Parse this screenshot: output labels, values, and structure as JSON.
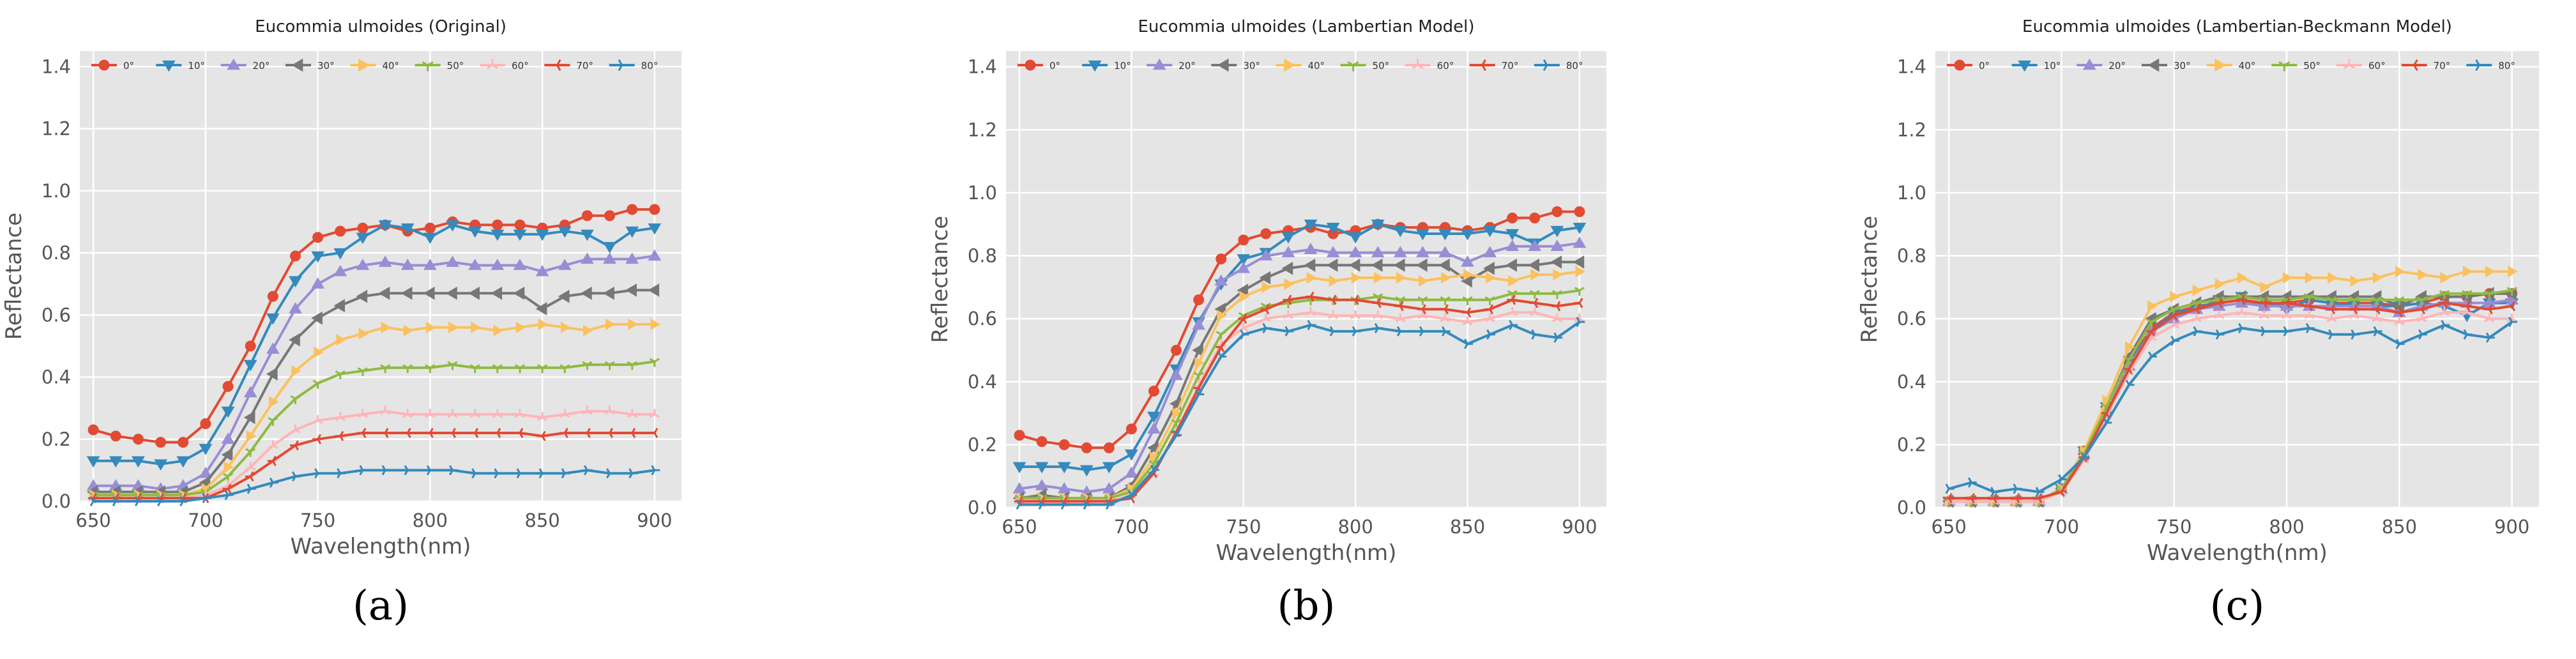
{
  "chart_data": [
    {
      "type": "line",
      "title": "Eucommia ulmoides (Original)",
      "xlabel": "Wavelength(nm)",
      "ylabel": "Reflectance",
      "panel_label": "(a)",
      "xlim": [
        644,
        912
      ],
      "ylim": [
        0,
        1.45
      ],
      "xticks": [
        650,
        700,
        750,
        800,
        850,
        900
      ],
      "yticks": [
        0.0,
        0.2,
        0.4,
        0.6,
        0.8,
        1.0,
        1.2,
        1.4
      ],
      "grid": true,
      "legend": "top",
      "x": [
        650,
        660,
        670,
        680,
        690,
        700,
        710,
        720,
        730,
        740,
        750,
        760,
        770,
        780,
        790,
        800,
        810,
        820,
        830,
        840,
        850,
        860,
        870,
        880,
        890,
        900
      ],
      "series": [
        {
          "name": "0°",
          "values": [
            0.23,
            0.21,
            0.2,
            0.19,
            0.19,
            0.25,
            0.37,
            0.5,
            0.66,
            0.79,
            0.85,
            0.87,
            0.88,
            0.89,
            0.87,
            0.88,
            0.9,
            0.89,
            0.89,
            0.89,
            0.88,
            0.89,
            0.92,
            0.92,
            0.94,
            0.94
          ]
        },
        {
          "name": "10°",
          "values": [
            0.13,
            0.13,
            0.13,
            0.12,
            0.13,
            0.17,
            0.29,
            0.44,
            0.59,
            0.71,
            0.79,
            0.8,
            0.85,
            0.89,
            0.88,
            0.85,
            0.89,
            0.87,
            0.86,
            0.86,
            0.86,
            0.87,
            0.86,
            0.82,
            0.87,
            0.88
          ]
        },
        {
          "name": "20°",
          "values": [
            0.05,
            0.05,
            0.05,
            0.04,
            0.05,
            0.09,
            0.2,
            0.35,
            0.49,
            0.62,
            0.7,
            0.74,
            0.76,
            0.77,
            0.76,
            0.76,
            0.77,
            0.76,
            0.76,
            0.76,
            0.74,
            0.76,
            0.78,
            0.78,
            0.78,
            0.79
          ]
        },
        {
          "name": "30°",
          "values": [
            0.03,
            0.03,
            0.03,
            0.03,
            0.03,
            0.06,
            0.15,
            0.27,
            0.41,
            0.52,
            0.59,
            0.63,
            0.66,
            0.67,
            0.67,
            0.67,
            0.67,
            0.67,
            0.67,
            0.67,
            0.62,
            0.66,
            0.67,
            0.67,
            0.68,
            0.68
          ]
        },
        {
          "name": "40°",
          "values": [
            0.02,
            0.02,
            0.02,
            0.02,
            0.02,
            0.04,
            0.11,
            0.21,
            0.32,
            0.42,
            0.48,
            0.52,
            0.54,
            0.56,
            0.55,
            0.56,
            0.56,
            0.56,
            0.55,
            0.56,
            0.57,
            0.56,
            0.55,
            0.57,
            0.57,
            0.57
          ]
        },
        {
          "name": "50°",
          "values": [
            0.02,
            0.02,
            0.02,
            0.02,
            0.02,
            0.03,
            0.08,
            0.16,
            0.26,
            0.33,
            0.38,
            0.41,
            0.42,
            0.43,
            0.43,
            0.43,
            0.44,
            0.43,
            0.43,
            0.43,
            0.43,
            0.43,
            0.44,
            0.44,
            0.44,
            0.45
          ]
        },
        {
          "name": "60°",
          "values": [
            0.01,
            0.01,
            0.01,
            0.01,
            0.01,
            0.02,
            0.05,
            0.11,
            0.18,
            0.23,
            0.26,
            0.27,
            0.28,
            0.29,
            0.28,
            0.28,
            0.28,
            0.28,
            0.28,
            0.28,
            0.27,
            0.28,
            0.29,
            0.29,
            0.28,
            0.28
          ]
        },
        {
          "name": "70°",
          "values": [
            0.01,
            0.01,
            0.01,
            0.01,
            0.01,
            0.01,
            0.04,
            0.08,
            0.13,
            0.18,
            0.2,
            0.21,
            0.22,
            0.22,
            0.22,
            0.22,
            0.22,
            0.22,
            0.22,
            0.22,
            0.21,
            0.22,
            0.22,
            0.22,
            0.22,
            0.22
          ]
        },
        {
          "name": "80°",
          "values": [
            0.0,
            0.0,
            0.0,
            0.0,
            0.0,
            0.01,
            0.02,
            0.04,
            0.06,
            0.08,
            0.09,
            0.09,
            0.1,
            0.1,
            0.1,
            0.1,
            0.1,
            0.09,
            0.09,
            0.09,
            0.09,
            0.09,
            0.1,
            0.09,
            0.09,
            0.1
          ]
        }
      ]
    },
    {
      "type": "line",
      "title": "Eucommia ulmoides (Lambertian Model)",
      "xlabel": "Wavelength(nm)",
      "ylabel": "Reflectance",
      "panel_label": "(b)",
      "xlim": [
        644,
        912
      ],
      "ylim": [
        0,
        1.45
      ],
      "xticks": [
        650,
        700,
        750,
        800,
        850,
        900
      ],
      "yticks": [
        0.0,
        0.2,
        0.4,
        0.6,
        0.8,
        1.0,
        1.2,
        1.4
      ],
      "grid": true,
      "legend": "top",
      "x": [
        650,
        660,
        670,
        680,
        690,
        700,
        710,
        720,
        730,
        740,
        750,
        760,
        770,
        780,
        790,
        800,
        810,
        820,
        830,
        840,
        850,
        860,
        870,
        880,
        890,
        900
      ],
      "series": [
        {
          "name": "0°",
          "values": [
            0.23,
            0.21,
            0.2,
            0.19,
            0.19,
            0.25,
            0.37,
            0.5,
            0.66,
            0.79,
            0.85,
            0.87,
            0.88,
            0.89,
            0.87,
            0.88,
            0.9,
            0.89,
            0.89,
            0.89,
            0.88,
            0.89,
            0.92,
            0.92,
            0.94,
            0.94
          ]
        },
        {
          "name": "10°",
          "values": [
            0.13,
            0.13,
            0.13,
            0.12,
            0.13,
            0.17,
            0.29,
            0.44,
            0.59,
            0.71,
            0.79,
            0.81,
            0.86,
            0.9,
            0.89,
            0.86,
            0.9,
            0.88,
            0.87,
            0.87,
            0.87,
            0.88,
            0.87,
            0.84,
            0.88,
            0.89
          ]
        },
        {
          "name": "20°",
          "values": [
            0.06,
            0.07,
            0.06,
            0.05,
            0.06,
            0.11,
            0.25,
            0.42,
            0.58,
            0.72,
            0.76,
            0.8,
            0.81,
            0.82,
            0.81,
            0.81,
            0.81,
            0.81,
            0.81,
            0.81,
            0.78,
            0.81,
            0.83,
            0.83,
            0.83,
            0.84
          ]
        },
        {
          "name": "30°",
          "values": [
            0.03,
            0.04,
            0.03,
            0.03,
            0.03,
            0.07,
            0.19,
            0.33,
            0.5,
            0.63,
            0.69,
            0.73,
            0.76,
            0.77,
            0.77,
            0.77,
            0.77,
            0.77,
            0.77,
            0.77,
            0.72,
            0.76,
            0.77,
            0.77,
            0.78,
            0.78
          ]
        },
        {
          "name": "40°",
          "values": [
            0.03,
            0.03,
            0.03,
            0.03,
            0.03,
            0.06,
            0.16,
            0.3,
            0.46,
            0.61,
            0.67,
            0.7,
            0.71,
            0.73,
            0.72,
            0.73,
            0.73,
            0.73,
            0.72,
            0.73,
            0.74,
            0.73,
            0.72,
            0.74,
            0.74,
            0.75
          ]
        },
        {
          "name": "50°",
          "values": [
            0.03,
            0.03,
            0.03,
            0.03,
            0.03,
            0.05,
            0.14,
            0.27,
            0.42,
            0.55,
            0.61,
            0.64,
            0.65,
            0.66,
            0.66,
            0.66,
            0.67,
            0.66,
            0.66,
            0.66,
            0.66,
            0.66,
            0.68,
            0.68,
            0.68,
            0.69
          ]
        },
        {
          "name": "60°",
          "values": [
            0.02,
            0.02,
            0.02,
            0.02,
            0.02,
            0.04,
            0.11,
            0.24,
            0.39,
            0.52,
            0.57,
            0.6,
            0.61,
            0.62,
            0.61,
            0.61,
            0.61,
            0.6,
            0.61,
            0.6,
            0.59,
            0.6,
            0.62,
            0.62,
            0.6,
            0.6
          ]
        },
        {
          "name": "70°",
          "values": [
            0.02,
            0.02,
            0.02,
            0.02,
            0.02,
            0.03,
            0.11,
            0.24,
            0.38,
            0.51,
            0.6,
            0.63,
            0.66,
            0.67,
            0.66,
            0.66,
            0.65,
            0.64,
            0.63,
            0.63,
            0.62,
            0.63,
            0.66,
            0.65,
            0.64,
            0.65
          ]
        },
        {
          "name": "80°",
          "values": [
            0.01,
            0.01,
            0.01,
            0.01,
            0.01,
            0.04,
            0.12,
            0.23,
            0.36,
            0.48,
            0.55,
            0.57,
            0.56,
            0.58,
            0.56,
            0.56,
            0.57,
            0.56,
            0.56,
            0.56,
            0.52,
            0.55,
            0.58,
            0.55,
            0.54,
            0.59
          ]
        }
      ]
    },
    {
      "type": "line",
      "title": "Eucommia ulmoides (Lambertian-Beckmann Model)",
      "xlabel": "Wavelength(nm)",
      "ylabel": "Reflectance",
      "panel_label": "(c)",
      "xlim": [
        644,
        912
      ],
      "ylim": [
        0,
        1.45
      ],
      "xticks": [
        650,
        700,
        750,
        800,
        850,
        900
      ],
      "yticks": [
        0.0,
        0.2,
        0.4,
        0.6,
        0.8,
        1.0,
        1.2,
        1.4
      ],
      "grid": true,
      "legend": "top",
      "x": [
        650,
        660,
        670,
        680,
        690,
        700,
        710,
        720,
        730,
        740,
        750,
        760,
        770,
        780,
        790,
        800,
        810,
        820,
        830,
        840,
        850,
        860,
        870,
        880,
        890,
        900
      ],
      "series": [
        {
          "name": "0°",
          "values": [
            0.02,
            0.02,
            0.02,
            0.02,
            0.02,
            0.06,
            0.18,
            0.32,
            0.46,
            0.57,
            0.62,
            0.64,
            0.65,
            0.66,
            0.64,
            0.65,
            0.66,
            0.65,
            0.65,
            0.65,
            0.64,
            0.65,
            0.67,
            0.67,
            0.68,
            0.68
          ]
        },
        {
          "name": "10°",
          "values": [
            0.02,
            0.02,
            0.02,
            0.02,
            0.02,
            0.06,
            0.18,
            0.32,
            0.46,
            0.56,
            0.62,
            0.63,
            0.66,
            0.67,
            0.66,
            0.63,
            0.66,
            0.65,
            0.64,
            0.64,
            0.64,
            0.65,
            0.64,
            0.61,
            0.65,
            0.65
          ]
        },
        {
          "name": "20°",
          "values": [
            0.02,
            0.02,
            0.02,
            0.02,
            0.02,
            0.06,
            0.17,
            0.31,
            0.45,
            0.56,
            0.6,
            0.63,
            0.64,
            0.65,
            0.64,
            0.64,
            0.64,
            0.64,
            0.64,
            0.64,
            0.62,
            0.64,
            0.65,
            0.65,
            0.65,
            0.66
          ]
        },
        {
          "name": "30°",
          "values": [
            0.02,
            0.02,
            0.02,
            0.02,
            0.02,
            0.06,
            0.17,
            0.32,
            0.48,
            0.6,
            0.63,
            0.65,
            0.67,
            0.67,
            0.67,
            0.67,
            0.67,
            0.67,
            0.67,
            0.67,
            0.64,
            0.67,
            0.67,
            0.67,
            0.68,
            0.68
          ]
        },
        {
          "name": "40°",
          "values": [
            0.02,
            0.02,
            0.02,
            0.02,
            0.02,
            0.06,
            0.18,
            0.34,
            0.51,
            0.64,
            0.67,
            0.69,
            0.71,
            0.73,
            0.7,
            0.73,
            0.73,
            0.73,
            0.72,
            0.73,
            0.75,
            0.74,
            0.73,
            0.75,
            0.75,
            0.75
          ]
        },
        {
          "name": "50°",
          "values": [
            0.02,
            0.02,
            0.02,
            0.02,
            0.02,
            0.06,
            0.17,
            0.32,
            0.47,
            0.59,
            0.63,
            0.65,
            0.66,
            0.67,
            0.66,
            0.66,
            0.67,
            0.66,
            0.66,
            0.66,
            0.66,
            0.66,
            0.68,
            0.68,
            0.68,
            0.69
          ]
        },
        {
          "name": "60°",
          "values": [
            0.02,
            0.02,
            0.02,
            0.02,
            0.02,
            0.05,
            0.15,
            0.29,
            0.43,
            0.54,
            0.58,
            0.6,
            0.61,
            0.62,
            0.61,
            0.61,
            0.61,
            0.6,
            0.61,
            0.6,
            0.59,
            0.6,
            0.62,
            0.62,
            0.6,
            0.6
          ]
        },
        {
          "name": "70°",
          "values": [
            0.03,
            0.03,
            0.03,
            0.03,
            0.03,
            0.05,
            0.16,
            0.3,
            0.44,
            0.56,
            0.61,
            0.63,
            0.65,
            0.66,
            0.65,
            0.65,
            0.64,
            0.63,
            0.63,
            0.63,
            0.62,
            0.63,
            0.65,
            0.64,
            0.63,
            0.64
          ]
        },
        {
          "name": "80°",
          "values": [
            0.06,
            0.08,
            0.05,
            0.06,
            0.05,
            0.09,
            0.16,
            0.27,
            0.39,
            0.48,
            0.53,
            0.56,
            0.55,
            0.57,
            0.56,
            0.56,
            0.57,
            0.55,
            0.55,
            0.56,
            0.52,
            0.55,
            0.58,
            0.55,
            0.54,
            0.59
          ]
        }
      ]
    }
  ],
  "series_style": [
    {
      "color": "#e24a33",
      "marker": "circle"
    },
    {
      "color": "#348abd",
      "marker": "triangle-down"
    },
    {
      "color": "#988ed5",
      "marker": "triangle-up"
    },
    {
      "color": "#777777",
      "marker": "triangle-left"
    },
    {
      "color": "#fbc15e",
      "marker": "triangle-right"
    },
    {
      "color": "#8eba42",
      "marker": "tri-down"
    },
    {
      "color": "#ffb5b8",
      "marker": "tri-up"
    },
    {
      "color": "#e24a33",
      "marker": "tri-left"
    },
    {
      "color": "#348abd",
      "marker": "tri-right"
    }
  ],
  "colors": {
    "plot_background": "#e5e5e5",
    "grid": "#ffffff",
    "text": "#555555",
    "panel_label": "#000000"
  }
}
